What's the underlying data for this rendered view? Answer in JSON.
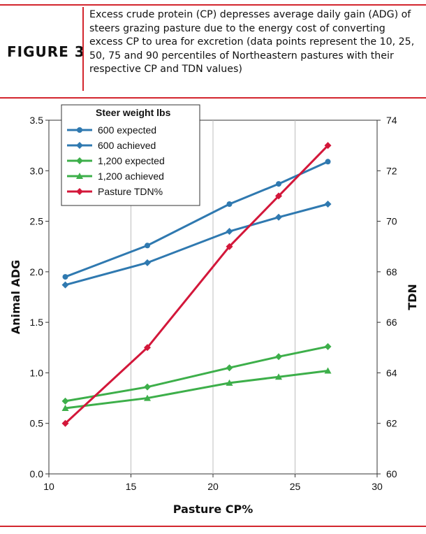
{
  "figure": {
    "label": "FIGURE 3",
    "caption": "Excess crude protein (CP) depresses average daily gain (ADG) of steers grazing pasture due to the energy cost of converting excess CP to urea for excretion (data points represent the 10, 25, 50, 75 and 90 percentiles of Northeastern pastures with their respective CP and TDN values)"
  },
  "colors": {
    "accent_red": "#d3262e",
    "blue": "#2f79b0",
    "green": "#3daf4a",
    "red": "#d3173a"
  },
  "chart_data": {
    "type": "line",
    "xlabel": "Pasture CP%",
    "ylabel": "Animal ADG",
    "y2label": "TDN",
    "xlim": [
      10,
      30
    ],
    "xticks": [
      10,
      15,
      20,
      25,
      30
    ],
    "ylim": [
      0,
      3.5
    ],
    "yticks": [
      "0.0",
      "0.5",
      "1.0",
      "1.5",
      "2.0",
      "2.5",
      "3.0",
      "3.5"
    ],
    "y2lim": [
      60,
      74
    ],
    "y2ticks": [
      60,
      62,
      64,
      66,
      68,
      70,
      72,
      74
    ],
    "grid": "vertical",
    "legend": {
      "title": "Steer weight lbs",
      "placement": "top-left"
    },
    "x": [
      11,
      16,
      21,
      24,
      27
    ],
    "series": [
      {
        "name": "600 expected",
        "axis": "left",
        "marker": "circle",
        "color": "#2f79b0",
        "values": [
          1.95,
          2.26,
          2.67,
          2.87,
          3.09
        ]
      },
      {
        "name": "600 achieved",
        "axis": "left",
        "marker": "diamond",
        "color": "#2f79b0",
        "values": [
          1.87,
          2.09,
          2.4,
          2.54,
          2.67
        ]
      },
      {
        "name": "1,200 expected",
        "axis": "left",
        "marker": "diamond",
        "color": "#3daf4a",
        "values": [
          0.72,
          0.86,
          1.05,
          1.16,
          1.26
        ]
      },
      {
        "name": "1,200 achieved",
        "axis": "left",
        "marker": "triangle",
        "color": "#3daf4a",
        "values": [
          0.65,
          0.75,
          0.9,
          0.96,
          1.02
        ]
      },
      {
        "name": "Pasture TDN%",
        "axis": "right",
        "marker": "diamond",
        "color": "#d3173a",
        "values": [
          62,
          65,
          69,
          71,
          73
        ]
      }
    ]
  }
}
